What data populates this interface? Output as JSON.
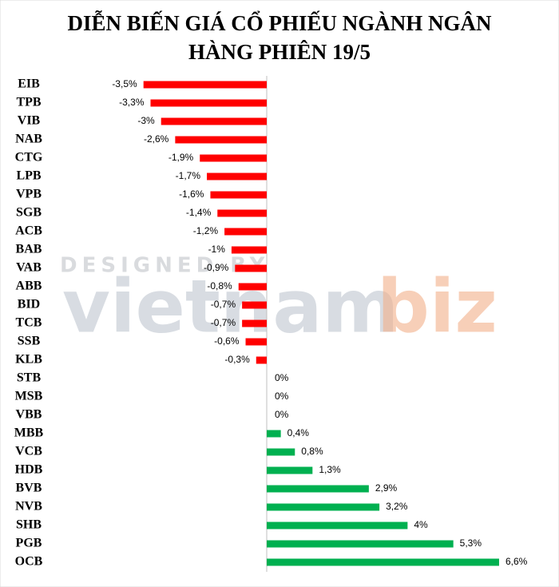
{
  "chart_data": {
    "type": "hbar",
    "title": [
      "DIỄN BIẾN GIÁ CỔ PHIẾU NGÀNH NGÂN",
      "HÀNG PHIÊN 19/5"
    ],
    "watermark": [
      "DESIGNED BY",
      "vietnam",
      "biz"
    ],
    "categories": [
      "EIB",
      "TPB",
      "VIB",
      "NAB",
      "CTG",
      "LPB",
      "VPB",
      "SGB",
      "ACB",
      "BAB",
      "VAB",
      "ABB",
      "BID",
      "TCB",
      "SSB",
      "KLB",
      "STB",
      "MSB",
      "VBB",
      "MBB",
      "VCB",
      "HDB",
      "BVB",
      "NVB",
      "SHB",
      "PGB",
      "OCB"
    ],
    "values": [
      -3.5,
      -3.3,
      -3,
      -2.6,
      -1.9,
      -1.7,
      -1.6,
      -1.4,
      -1.2,
      -1,
      -0.9,
      -0.8,
      -0.7,
      -0.7,
      -0.6,
      -0.3,
      0,
      0,
      0,
      0.4,
      0.8,
      1.3,
      2.9,
      3.2,
      4,
      5.3,
      6.6
    ],
    "value_labels": [
      "-3,5%",
      "-3,3%",
      "-3%",
      "-2,6%",
      "-1,9%",
      "-1,7%",
      "-1,6%",
      "-1,4%",
      "-1,2%",
      "-1%",
      "-0,9%",
      "-0,8%",
      "-0,7%",
      "-0,7%",
      "-0,6%",
      "-0,3%",
      "0%",
      "0%",
      "0%",
      "0,4%",
      "0,8%",
      "1,3%",
      "2,9%",
      "3,2%",
      "4%",
      "5,3%",
      "6,6%"
    ],
    "negative_color": "#ff0000",
    "positive_color": "#00b050"
  }
}
